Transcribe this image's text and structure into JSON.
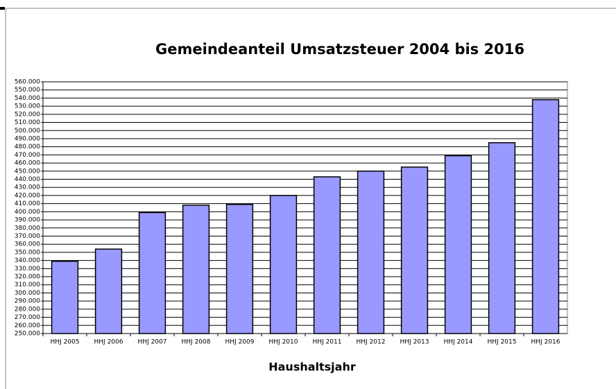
{
  "chart_data": {
    "type": "bar",
    "title": "Gemeindeanteil Umsatzsteuer 2004 bis 2016",
    "x_label": "Haushaltsjahr",
    "categories": [
      "HHJ 2005",
      "HHJ 2006",
      "HHJ 2007",
      "HHJ 2008",
      "HHJ 2009",
      "HHJ 2010",
      "HHJ 2011",
      "HHJ 2012",
      "HHJ 2013",
      "HHJ 2014",
      "HHJ 2015",
      "HHJ 2016"
    ],
    "values": [
      339000,
      354000,
      399000,
      408000,
      409000,
      420000,
      443000,
      450000,
      455000,
      469000,
      485000,
      538000
    ],
    "color": "#9999ff",
    "grid": true,
    "ylim": [
      250000,
      560000
    ],
    "yticks": [
      {
        "value": 250000,
        "label": "250.000"
      },
      {
        "value": 260000,
        "label": "260.000"
      },
      {
        "value": 270000,
        "label": "270.000"
      },
      {
        "value": 280000,
        "label": "280.000"
      },
      {
        "value": 290000,
        "label": "290.000"
      },
      {
        "value": 300000,
        "label": "300.000"
      },
      {
        "value": 310000,
        "label": "310.000"
      },
      {
        "value": 320000,
        "label": "320.000"
      },
      {
        "value": 330000,
        "label": "330.000"
      },
      {
        "value": 340000,
        "label": "340.000"
      },
      {
        "value": 350000,
        "label": "350.000"
      },
      {
        "value": 360000,
        "label": "360.000"
      },
      {
        "value": 370000,
        "label": "370.000"
      },
      {
        "value": 380000,
        "label": "380.000"
      },
      {
        "value": 390000,
        "label": "390.000"
      },
      {
        "value": 400000,
        "label": "400.000"
      },
      {
        "value": 410000,
        "label": "410.000"
      },
      {
        "value": 420000,
        "label": "420.000"
      },
      {
        "value": 430000,
        "label": "430.000"
      },
      {
        "value": 440000,
        "label": "440.000"
      },
      {
        "value": 450000,
        "label": "450.000"
      },
      {
        "value": 460000,
        "label": "460.000"
      },
      {
        "value": 470000,
        "label": "470.000"
      },
      {
        "value": 480000,
        "label": "480.000"
      },
      {
        "value": 490000,
        "label": "490.000"
      },
      {
        "value": 500000,
        "label": "500.000"
      },
      {
        "value": 510000,
        "label": "510.000"
      },
      {
        "value": 520000,
        "label": "520.000"
      },
      {
        "value": 530000,
        "label": "530.000"
      },
      {
        "value": 540000,
        "label": "540.000"
      },
      {
        "value": 550000,
        "label": "550.000"
      },
      {
        "value": 560000,
        "label": "560.000"
      }
    ]
  }
}
